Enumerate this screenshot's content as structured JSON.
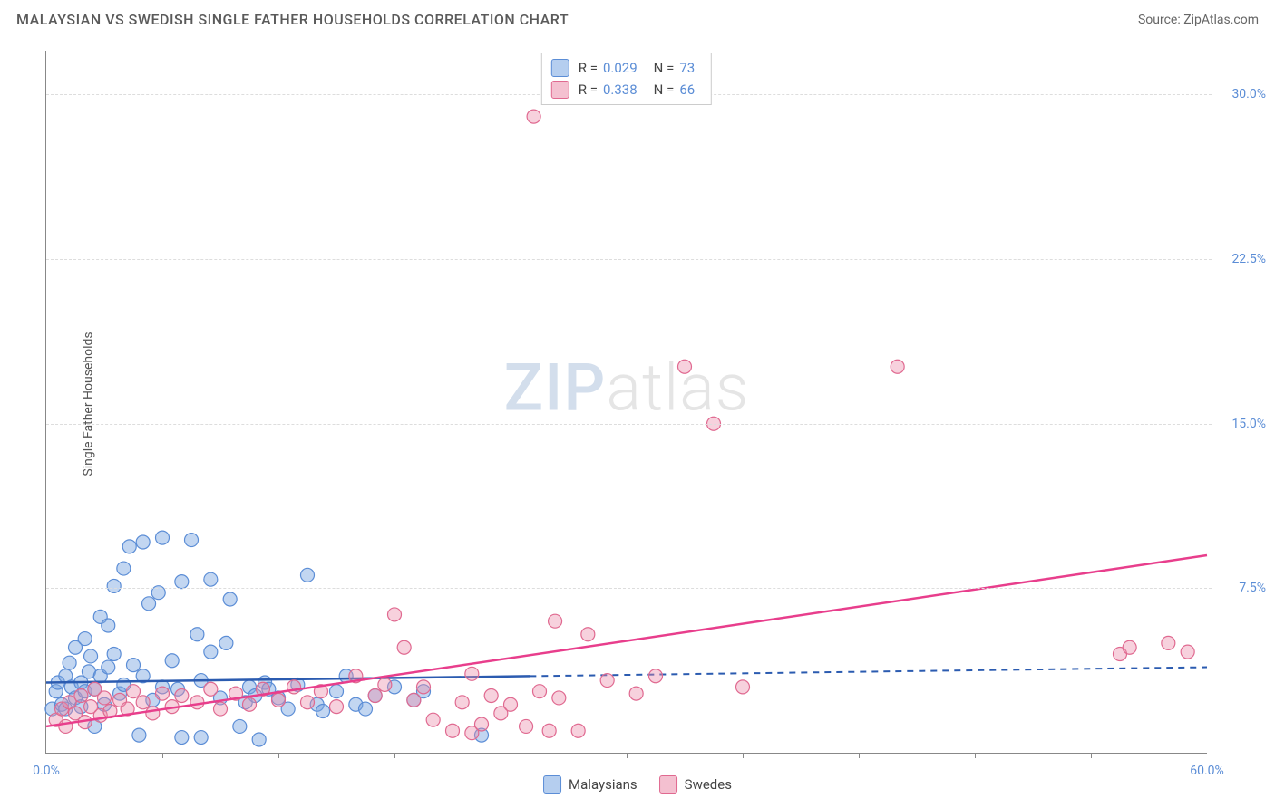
{
  "header": {
    "title": "MALAYSIAN VS SWEDISH SINGLE FATHER HOUSEHOLDS CORRELATION CHART",
    "source": "Source: ZipAtlas.com"
  },
  "chart": {
    "type": "scatter",
    "ylabel": "Single Father Households",
    "xlim": [
      0,
      60
    ],
    "ylim": [
      0,
      32
    ],
    "x_axis_label_min": "0.0%",
    "x_axis_label_max": "60.0%",
    "yticks": [
      {
        "v": 7.5,
        "label": "7.5%"
      },
      {
        "v": 15.0,
        "label": "15.0%"
      },
      {
        "v": 22.5,
        "label": "22.5%"
      },
      {
        "v": 30.0,
        "label": "30.0%"
      }
    ],
    "xticks_minor": [
      6,
      12,
      18,
      24,
      30,
      36,
      42,
      48,
      54
    ],
    "grid_color": "#dddddd",
    "axis_color": "#888888",
    "background_color": "#ffffff",
    "watermark": {
      "zip": "ZIP",
      "atlas": "atlas"
    },
    "series": [
      {
        "name": "Malaysians",
        "point_fill": "rgba(120,165,225,0.45)",
        "point_stroke": "#5b8dd6",
        "swatch_fill": "rgba(120,165,225,0.55)",
        "swatch_stroke": "#5b8dd6",
        "line_color": "#2b5bb0",
        "line_dash_after": 25,
        "R": "0.029",
        "N": "73",
        "trend": {
          "x1": 0,
          "y1": 3.2,
          "x2": 60,
          "y2": 3.9
        },
        "points": [
          [
            0.3,
            2.0
          ],
          [
            0.5,
            2.8
          ],
          [
            0.6,
            3.2
          ],
          [
            0.8,
            2.2
          ],
          [
            1.0,
            3.5
          ],
          [
            1.0,
            2.0
          ],
          [
            1.2,
            4.1
          ],
          [
            1.3,
            3.0
          ],
          [
            1.5,
            2.5
          ],
          [
            1.5,
            4.8
          ],
          [
            1.8,
            3.2
          ],
          [
            1.8,
            2.1
          ],
          [
            2.0,
            5.2
          ],
          [
            2.0,
            2.8
          ],
          [
            2.2,
            3.7
          ],
          [
            2.3,
            4.4
          ],
          [
            2.5,
            1.2
          ],
          [
            2.5,
            2.9
          ],
          [
            2.8,
            3.5
          ],
          [
            2.8,
            6.2
          ],
          [
            3.0,
            2.2
          ],
          [
            3.2,
            3.9
          ],
          [
            3.2,
            5.8
          ],
          [
            3.5,
            4.5
          ],
          [
            3.5,
            7.6
          ],
          [
            3.8,
            2.7
          ],
          [
            4.0,
            8.4
          ],
          [
            4.0,
            3.1
          ],
          [
            4.3,
            9.4
          ],
          [
            4.5,
            4.0
          ],
          [
            4.8,
            0.8
          ],
          [
            5.0,
            3.5
          ],
          [
            5.0,
            9.6
          ],
          [
            5.3,
            6.8
          ],
          [
            5.5,
            2.4
          ],
          [
            5.8,
            7.3
          ],
          [
            6.0,
            3.0
          ],
          [
            6.0,
            9.8
          ],
          [
            6.5,
            4.2
          ],
          [
            6.8,
            2.9
          ],
          [
            7.0,
            7.8
          ],
          [
            7.0,
            0.7
          ],
          [
            7.5,
            9.7
          ],
          [
            7.8,
            5.4
          ],
          [
            8.0,
            3.3
          ],
          [
            8.0,
            0.7
          ],
          [
            8.5,
            7.9
          ],
          [
            8.5,
            4.6
          ],
          [
            9.0,
            2.5
          ],
          [
            9.3,
            5.0
          ],
          [
            9.5,
            7.0
          ],
          [
            10.0,
            1.2
          ],
          [
            10.3,
            2.3
          ],
          [
            10.5,
            3.0
          ],
          [
            10.8,
            2.6
          ],
          [
            11.0,
            0.6
          ],
          [
            11.3,
            3.2
          ],
          [
            11.5,
            2.9
          ],
          [
            12.0,
            2.5
          ],
          [
            12.5,
            2.0
          ],
          [
            13.0,
            3.1
          ],
          [
            13.5,
            8.1
          ],
          [
            14.0,
            2.2
          ],
          [
            14.3,
            1.9
          ],
          [
            15.0,
            2.8
          ],
          [
            15.5,
            3.5
          ],
          [
            16.0,
            2.2
          ],
          [
            16.5,
            2.0
          ],
          [
            17.0,
            2.6
          ],
          [
            18.0,
            3.0
          ],
          [
            19.0,
            2.4
          ],
          [
            19.5,
            2.8
          ],
          [
            22.5,
            0.8
          ]
        ]
      },
      {
        "name": "Swedes",
        "point_fill": "rgba(235,140,170,0.40)",
        "point_stroke": "#e06990",
        "swatch_fill": "rgba(235,140,170,0.55)",
        "swatch_stroke": "#e06990",
        "line_color": "#e83e8c",
        "line_dash_after": 999,
        "R": "0.338",
        "N": "66",
        "trend": {
          "x1": 0,
          "y1": 1.2,
          "x2": 60,
          "y2": 9.0
        },
        "points": [
          [
            0.5,
            1.5
          ],
          [
            0.8,
            2.0
          ],
          [
            1.0,
            1.2
          ],
          [
            1.2,
            2.3
          ],
          [
            1.5,
            1.8
          ],
          [
            1.8,
            2.6
          ],
          [
            2.0,
            1.4
          ],
          [
            2.3,
            2.1
          ],
          [
            2.5,
            2.9
          ],
          [
            2.8,
            1.7
          ],
          [
            3.0,
            2.5
          ],
          [
            3.3,
            1.9
          ],
          [
            3.8,
            2.4
          ],
          [
            4.2,
            2.0
          ],
          [
            4.5,
            2.8
          ],
          [
            5.0,
            2.3
          ],
          [
            5.5,
            1.8
          ],
          [
            6.0,
            2.7
          ],
          [
            6.5,
            2.1
          ],
          [
            7.0,
            2.6
          ],
          [
            7.8,
            2.3
          ],
          [
            8.5,
            2.9
          ],
          [
            9.0,
            2.0
          ],
          [
            9.8,
            2.7
          ],
          [
            10.5,
            2.2
          ],
          [
            11.2,
            2.9
          ],
          [
            12.0,
            2.4
          ],
          [
            12.8,
            3.0
          ],
          [
            13.5,
            2.3
          ],
          [
            14.2,
            2.8
          ],
          [
            15.0,
            2.1
          ],
          [
            16.0,
            3.5
          ],
          [
            17.0,
            2.6
          ],
          [
            17.5,
            3.1
          ],
          [
            18.0,
            6.3
          ],
          [
            18.5,
            4.8
          ],
          [
            19.0,
            2.4
          ],
          [
            19.5,
            3.0
          ],
          [
            20.0,
            1.5
          ],
          [
            21.0,
            1.0
          ],
          [
            21.5,
            2.3
          ],
          [
            22.0,
            3.6
          ],
          [
            22.0,
            0.9
          ],
          [
            22.5,
            1.3
          ],
          [
            23.0,
            2.6
          ],
          [
            23.5,
            1.8
          ],
          [
            24.0,
            2.2
          ],
          [
            24.8,
            1.2
          ],
          [
            25.2,
            29.0
          ],
          [
            25.5,
            2.8
          ],
          [
            26.0,
            1.0
          ],
          [
            26.3,
            6.0
          ],
          [
            26.5,
            2.5
          ],
          [
            27.5,
            1.0
          ],
          [
            28.0,
            5.4
          ],
          [
            29.0,
            3.3
          ],
          [
            30.5,
            2.7
          ],
          [
            31.5,
            3.5
          ],
          [
            33.0,
            17.6
          ],
          [
            34.5,
            15.0
          ],
          [
            36.0,
            3.0
          ],
          [
            44.0,
            17.6
          ],
          [
            55.5,
            4.5
          ],
          [
            56.0,
            4.8
          ],
          [
            58.0,
            5.0
          ],
          [
            59.0,
            4.6
          ]
        ]
      }
    ],
    "bottom_legend": [
      {
        "label": "Malaysians",
        "series": 0
      },
      {
        "label": "Swedes",
        "series": 1
      }
    ]
  }
}
